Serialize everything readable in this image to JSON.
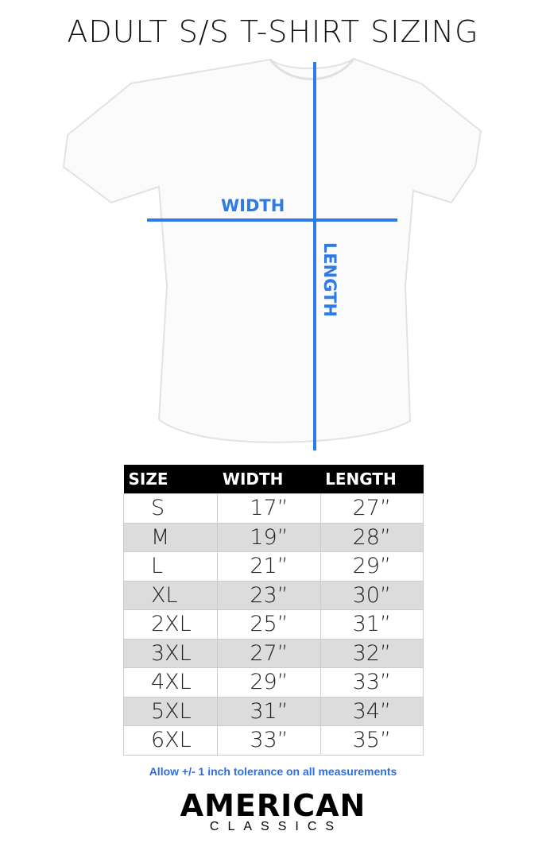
{
  "title": "ADULT S/S T-SHIRT SIZING",
  "diagram": {
    "width_label": "WIDTH",
    "length_label": "LENGTH",
    "accent_color": "#2d7be8"
  },
  "table": {
    "headers": [
      "SIZE",
      "WIDTH",
      "LENGTH"
    ],
    "rows": [
      [
        "S",
        "17”",
        "27”"
      ],
      [
        "M",
        "19”",
        "28”"
      ],
      [
        "L",
        "21”",
        "29”"
      ],
      [
        "XL",
        "23”",
        "30”"
      ],
      [
        "2XL",
        "25”",
        "31”"
      ],
      [
        "3XL",
        "27”",
        "32”"
      ],
      [
        "4XL",
        "29”",
        "33”"
      ],
      [
        "5XL",
        "31”",
        "34”"
      ],
      [
        "6XL",
        "33”",
        "35”"
      ]
    ]
  },
  "note": "Allow +/- 1 inch tolerance on all measurements",
  "brand": {
    "line1": "AMERICAN",
    "line2": "CLASSICS"
  }
}
